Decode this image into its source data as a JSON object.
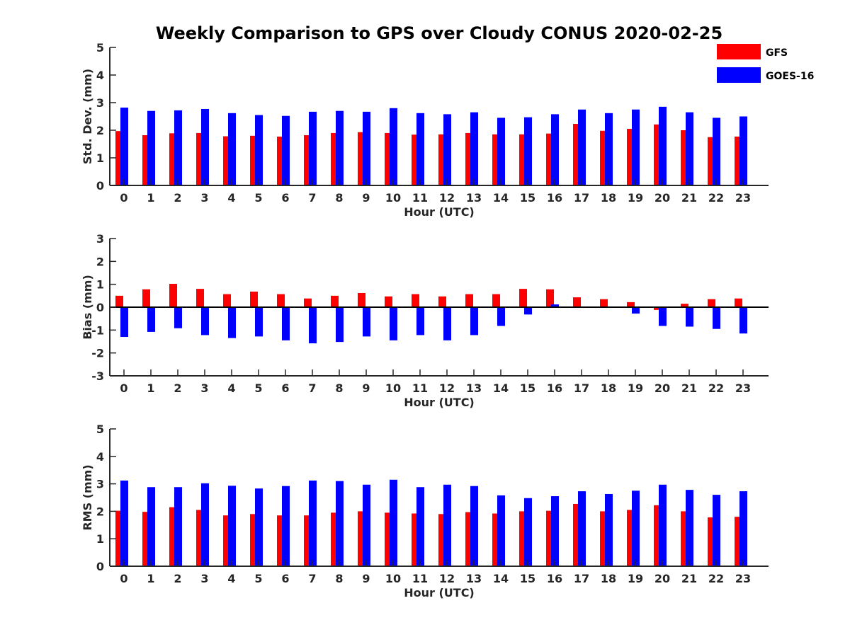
{
  "figure": {
    "title": "Weekly Comparison to GPS over Cloudy CONUS 2020-02-25"
  },
  "legend": {
    "position": "top-right",
    "entries": [
      {
        "label": "GFS",
        "color": "#ff0000"
      },
      {
        "label": "GOES-16",
        "color": "#0000ff"
      }
    ]
  },
  "chart_data": [
    {
      "type": "bar",
      "xlabel": "Hour (UTC)",
      "ylabel": "Std. Dev. (mm)",
      "ylim": [
        0,
        5
      ],
      "yticks": [
        0,
        1,
        2,
        3,
        4,
        5
      ],
      "categories": [
        "0",
        "1",
        "2",
        "3",
        "4",
        "5",
        "6",
        "7",
        "8",
        "9",
        "10",
        "11",
        "12",
        "13",
        "14",
        "15",
        "16",
        "17",
        "18",
        "19",
        "20",
        "21",
        "22",
        "23"
      ],
      "series": [
        {
          "name": "GFS",
          "color": "#ff0000",
          "values": [
            1.97,
            1.82,
            1.89,
            1.9,
            1.78,
            1.8,
            1.77,
            1.82,
            1.9,
            1.93,
            1.9,
            1.84,
            1.85,
            1.9,
            1.85,
            1.85,
            1.88,
            2.23,
            1.98,
            2.05,
            2.21,
            2.0,
            1.75,
            1.77
          ]
        },
        {
          "name": "GOES-16",
          "color": "#0000ff",
          "values": [
            2.82,
            2.7,
            2.72,
            2.77,
            2.62,
            2.55,
            2.52,
            2.67,
            2.7,
            2.67,
            2.8,
            2.62,
            2.58,
            2.65,
            2.45,
            2.47,
            2.58,
            2.75,
            2.62,
            2.75,
            2.85,
            2.65,
            2.45,
            2.5
          ]
        }
      ]
    },
    {
      "type": "bar",
      "xlabel": "Hour (UTC)",
      "ylabel": "Bias (mm)",
      "ylim": [
        -3,
        3
      ],
      "yticks": [
        -3,
        -2,
        -1,
        0,
        1,
        2,
        3
      ],
      "categories": [
        "0",
        "1",
        "2",
        "3",
        "4",
        "5",
        "6",
        "7",
        "8",
        "9",
        "10",
        "11",
        "12",
        "13",
        "14",
        "15",
        "16",
        "17",
        "18",
        "19",
        "20",
        "21",
        "22",
        "23"
      ],
      "series": [
        {
          "name": "GFS",
          "color": "#ff0000",
          "values": [
            0.5,
            0.78,
            1.02,
            0.8,
            0.57,
            0.68,
            0.57,
            0.38,
            0.5,
            0.62,
            0.47,
            0.57,
            0.47,
            0.57,
            0.57,
            0.8,
            0.78,
            0.43,
            0.35,
            0.22,
            -0.12,
            0.15,
            0.35,
            0.38
          ]
        },
        {
          "name": "GOES-16",
          "color": "#0000ff",
          "values": [
            -1.3,
            -1.08,
            -0.92,
            -1.22,
            -1.35,
            -1.28,
            -1.45,
            -1.58,
            -1.52,
            -1.28,
            -1.45,
            -1.22,
            -1.45,
            -1.22,
            -0.82,
            -0.32,
            0.12,
            0.0,
            0.02,
            -0.28,
            -0.82,
            -0.85,
            -0.95,
            -1.15
          ]
        }
      ]
    },
    {
      "type": "bar",
      "xlabel": "Hour (UTC)",
      "ylabel": "RMS (mm)",
      "ylim": [
        0,
        5
      ],
      "yticks": [
        0,
        1,
        2,
        3,
        4,
        5
      ],
      "categories": [
        "0",
        "1",
        "2",
        "3",
        "4",
        "5",
        "6",
        "7",
        "8",
        "9",
        "10",
        "11",
        "12",
        "13",
        "14",
        "15",
        "16",
        "17",
        "18",
        "19",
        "20",
        "21",
        "22",
        "23"
      ],
      "series": [
        {
          "name": "GFS",
          "color": "#ff0000",
          "values": [
            2.02,
            1.98,
            2.15,
            2.05,
            1.85,
            1.9,
            1.85,
            1.85,
            1.95,
            2.0,
            1.95,
            1.92,
            1.9,
            1.97,
            1.92,
            2.0,
            2.02,
            2.27,
            2.0,
            2.05,
            2.22,
            2.0,
            1.78,
            1.8
          ]
        },
        {
          "name": "GOES-16",
          "color": "#0000ff",
          "values": [
            3.12,
            2.88,
            2.88,
            3.02,
            2.93,
            2.83,
            2.92,
            3.12,
            3.1,
            2.97,
            3.15,
            2.88,
            2.97,
            2.92,
            2.58,
            2.48,
            2.55,
            2.73,
            2.63,
            2.75,
            2.97,
            2.78,
            2.6,
            2.73
          ]
        }
      ]
    }
  ]
}
